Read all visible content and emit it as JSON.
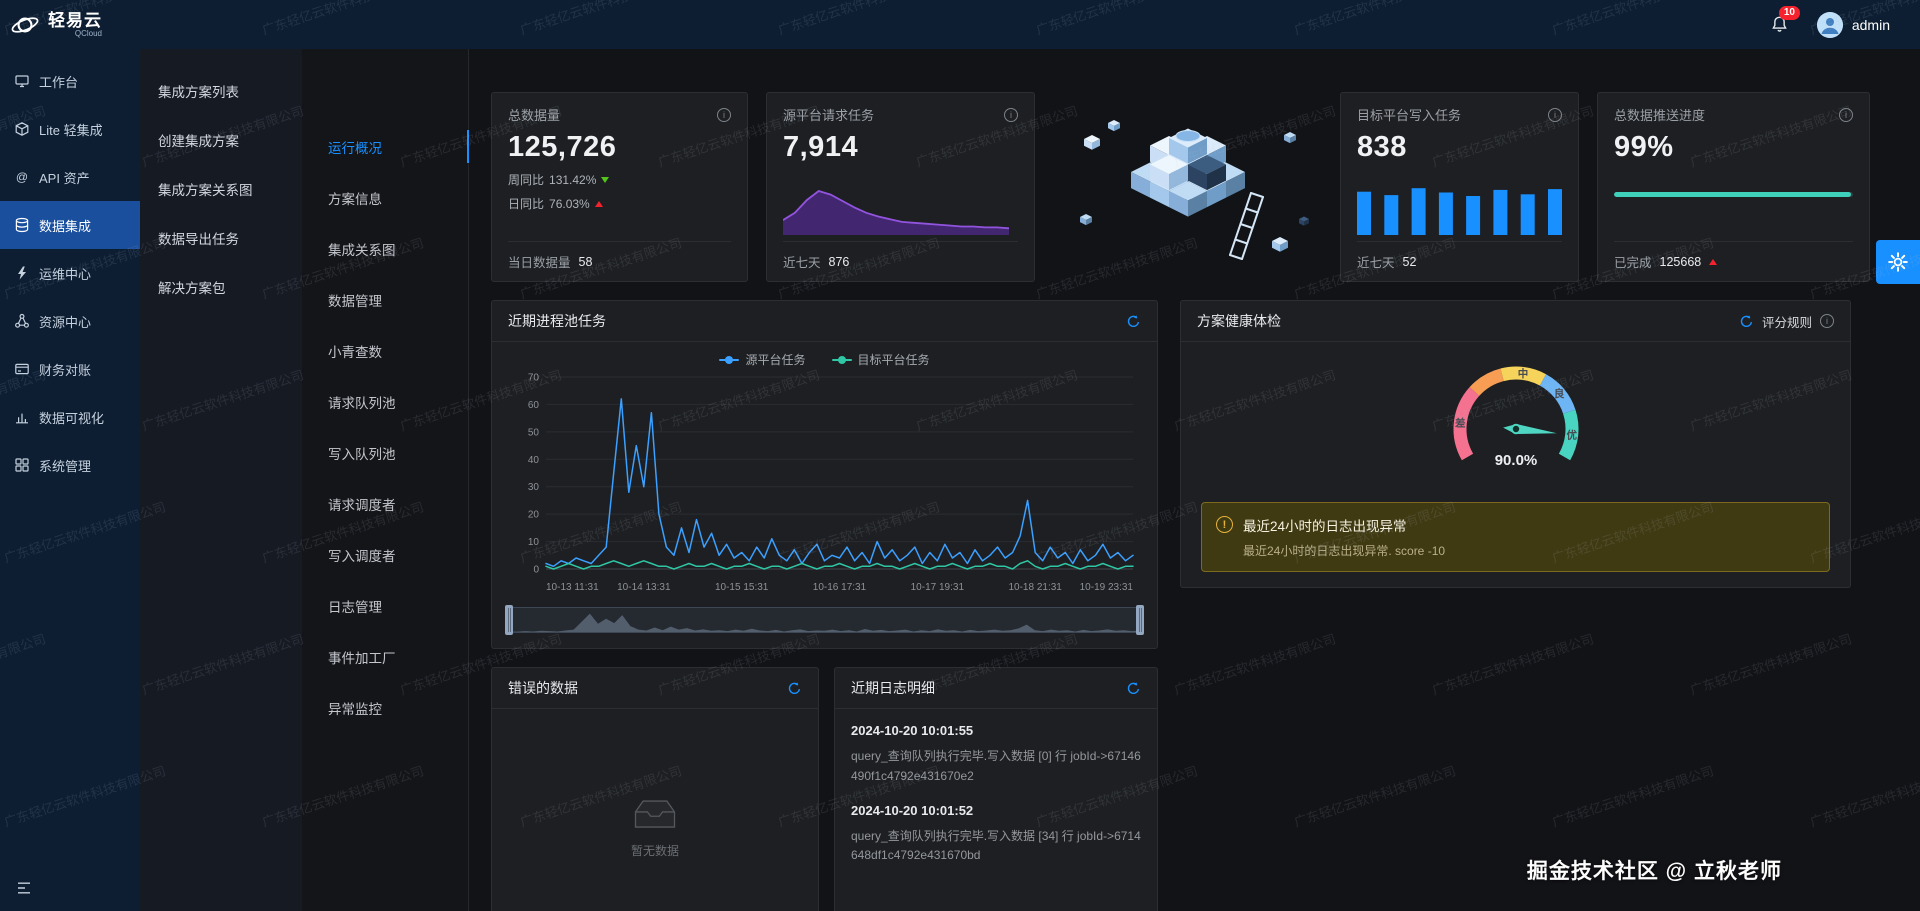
{
  "logo": {
    "title": "轻易云",
    "subtitle": "QCloud"
  },
  "topbar": {
    "notification_count": "10",
    "username": "admin"
  },
  "sidebar": {
    "items": [
      {
        "label": "工作台"
      },
      {
        "label": "Lite 轻集成"
      },
      {
        "label": "API 资产"
      },
      {
        "label": "数据集成",
        "active": true
      },
      {
        "label": "运维中心"
      },
      {
        "label": "资源中心"
      },
      {
        "label": "财务对账"
      },
      {
        "label": "数据可视化"
      },
      {
        "label": "系统管理"
      }
    ]
  },
  "submenu": {
    "items": [
      {
        "label": "集成方案列表"
      },
      {
        "label": "创建集成方案"
      },
      {
        "label": "集成方案关系图"
      },
      {
        "label": "数据导出任务"
      },
      {
        "label": "解决方案包"
      }
    ]
  },
  "tabs": {
    "active": "运行概况",
    "items": [
      {
        "label": "运行概况"
      },
      {
        "label": "方案信息"
      },
      {
        "label": "集成关系图"
      },
      {
        "label": "数据管理"
      },
      {
        "label": "小青查数"
      },
      {
        "label": "请求队列池"
      },
      {
        "label": "写入队列池"
      },
      {
        "label": "请求调度者"
      },
      {
        "label": "写入调度者"
      },
      {
        "label": "日志管理"
      },
      {
        "label": "事件加工厂"
      },
      {
        "label": "异常监控"
      }
    ]
  },
  "stats": {
    "total_data": {
      "title": "总数据量",
      "value": "125,726",
      "week_label": "周同比",
      "week_value": "131.42%",
      "day_label": "日同比",
      "day_value": "76.03%",
      "footer_label": "当日数据量",
      "footer_value": "58"
    },
    "source_requests": {
      "title": "源平台请求任务",
      "value": "7,914",
      "footer_label": "近七天",
      "footer_value": "876"
    },
    "target_writes": {
      "title": "目标平台写入任务",
      "value": "838",
      "footer_label": "近七天",
      "footer_value": "52"
    },
    "push_progress": {
      "title": "总数据推送进度",
      "value": "99%",
      "footer_label": "已完成",
      "footer_value": "125668"
    }
  },
  "panels": {
    "process_pool": {
      "title": "近期进程池任务"
    },
    "health": {
      "title": "方案健康体检",
      "rules_label": "评分规则",
      "alert_title": "最近24小时的日志出现异常",
      "alert_desc": "最近24小时的日志出现异常. score -10"
    },
    "error_data": {
      "title": "错误的数据",
      "empty_text": "暂无数据"
    },
    "logs": {
      "title": "近期日志明细",
      "entries": [
        {
          "time": "2024-10-20 10:01:55",
          "message": "query_查询队列执行完毕.写入数据 [0] 行 jobId->67146490f1c4792e431670e2"
        },
        {
          "time": "2024-10-20 10:01:52",
          "message": "query_查询队列执行完毕.写入数据 [34] 行 jobId->6714648df1c4792e431670bd"
        }
      ]
    }
  },
  "chart_data": [
    {
      "id": "process_pool",
      "type": "line",
      "title": "近期进程池任务",
      "legend_position": "top",
      "grid": true,
      "ylim": [
        0,
        70
      ],
      "y_ticks": [
        0,
        10,
        20,
        30,
        40,
        50,
        60,
        70
      ],
      "x_ticks": [
        "10-13 11:31",
        "10-14 13:31",
        "10-15 15:31",
        "10-16 17:31",
        "10-17 19:31",
        "10-18 21:31",
        "10-19 23:31"
      ],
      "series": [
        {
          "name": "源平台任务",
          "color": "#3ba0ff",
          "values": [
            2,
            1,
            3,
            2,
            4,
            3,
            2,
            5,
            8,
            35,
            62,
            28,
            45,
            30,
            57,
            20,
            8,
            5,
            15,
            6,
            18,
            8,
            13,
            5,
            9,
            4,
            6,
            3,
            8,
            4,
            11,
            5,
            3,
            7,
            2,
            6,
            9,
            3,
            5,
            4,
            8,
            3,
            6,
            2,
            10,
            4,
            7,
            3,
            5,
            8,
            2,
            6,
            3,
            9,
            4,
            6,
            2,
            7,
            3,
            5,
            8,
            4,
            6,
            12,
            25,
            6,
            3,
            8,
            4,
            6,
            2,
            7,
            3,
            5,
            9,
            4,
            6,
            3,
            5
          ]
        },
        {
          "name": "目标平台任务",
          "color": "#2fc7a5",
          "values": [
            1,
            0,
            1,
            2,
            1,
            0,
            1,
            1,
            2,
            3,
            2,
            1,
            2,
            3,
            2,
            1,
            1,
            0,
            1,
            2,
            1,
            1,
            2,
            1,
            0,
            1,
            1,
            2,
            1,
            0,
            1,
            1,
            0,
            1,
            2,
            1,
            0,
            1,
            1,
            2,
            1,
            0,
            1,
            1,
            2,
            1,
            1,
            0,
            1,
            2,
            1,
            0,
            1,
            1,
            2,
            1,
            0,
            1,
            1,
            2,
            1,
            1,
            0,
            2,
            3,
            1,
            0,
            1,
            1,
            2,
            1,
            0,
            1,
            1,
            2,
            1,
            0,
            1,
            1
          ]
        }
      ]
    },
    {
      "id": "health_gauge",
      "type": "gauge",
      "title": "方案健康体检",
      "value": 90.0,
      "unit": "%",
      "segments": [
        {
          "label": "差",
          "from": 0.0,
          "to": 0.3,
          "color": "#f4718f"
        },
        {
          "label": "",
          "from": 0.3,
          "to": 0.44,
          "color": "#f89e54"
        },
        {
          "label": "中",
          "from": 0.44,
          "to": 0.62,
          "color": "#f6d35b"
        },
        {
          "label": "良",
          "from": 0.62,
          "to": 0.8,
          "color": "#6db5f5"
        },
        {
          "label": "优",
          "from": 0.8,
          "to": 1.0,
          "color": "#49d4c2"
        }
      ]
    },
    {
      "id": "source_spark",
      "type": "area",
      "title": "源平台请求任务近七天走势",
      "color": "#9254de",
      "fill": "#722ed1",
      "values": [
        12,
        20,
        34,
        44,
        40,
        33,
        26,
        20,
        16,
        13,
        10,
        9,
        8,
        7,
        6,
        5,
        5,
        4,
        4,
        3
      ]
    },
    {
      "id": "target_bars",
      "type": "bar",
      "title": "目标平台写入任务近七天走势",
      "color": "#1890ff",
      "values": [
        50,
        46,
        54,
        49,
        45,
        52,
        47,
        53
      ]
    },
    {
      "id": "push_progress",
      "type": "progress",
      "title": "总数据推送进度",
      "value": 99,
      "color": "#3ed0bb"
    }
  ],
  "icons": {
    "info": "i",
    "alert": "!"
  },
  "watermark": {
    "text": "广东轻亿云软件科技有限公司"
  },
  "credit": {
    "text": "掘金技术社区 @ 立秋老师"
  },
  "colors": {
    "accent": "#1890ff",
    "navy": "#0d1e33",
    "panel": "#1d1f22",
    "teal": "#3ed0bb",
    "purple": "#722ed1",
    "red": "#f5222d",
    "green": "#52c41a",
    "warning": "#e6b33c"
  }
}
